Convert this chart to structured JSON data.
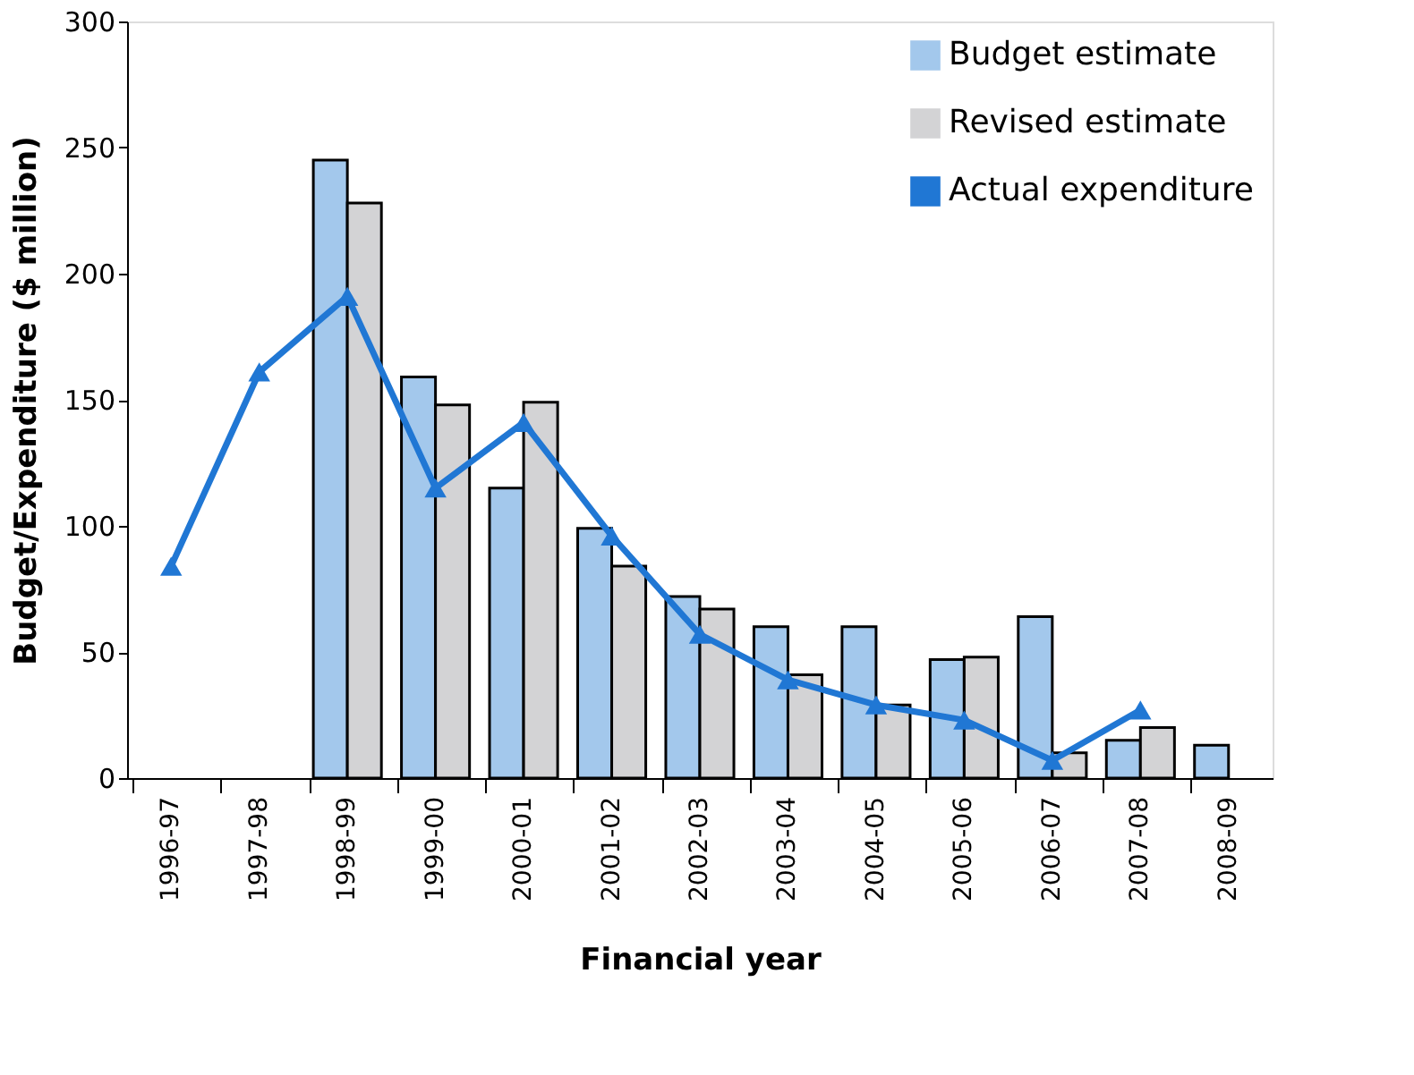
{
  "chart_data": {
    "type": "bar",
    "xlabel": "Financial year",
    "ylabel": "Budget/Expenditure ($ million)",
    "categories": [
      "1996-97",
      "1997-98",
      "1998-99",
      "1999-00",
      "2000-01",
      "2001-02",
      "2002-03",
      "2003-04",
      "2004-05",
      "2005-06",
      "2006-07",
      "2007-08",
      "2008-09"
    ],
    "series": [
      {
        "name": "Budget estimate",
        "color": "#a3c8ec",
        "values": [
          null,
          null,
          245,
          159,
          115,
          99,
          72,
          60,
          60,
          47,
          64,
          15,
          13
        ]
      },
      {
        "name": "Revised estimate",
        "color": "#d3d3d5",
        "values": [
          null,
          null,
          228,
          148,
          149,
          84,
          67,
          41,
          29,
          48,
          10,
          20,
          null
        ]
      },
      {
        "name": "Actual expenditure",
        "type": "line",
        "marker": "triangle",
        "color": "#2077d4",
        "values": [
          84,
          161,
          191,
          115,
          141,
          96,
          57,
          39,
          29,
          23,
          7,
          27,
          null
        ]
      }
    ],
    "ylim": [
      0,
      300
    ],
    "yticks": [
      0,
      50,
      100,
      150,
      200,
      250,
      300
    ],
    "grid": false,
    "legend": "top right"
  }
}
